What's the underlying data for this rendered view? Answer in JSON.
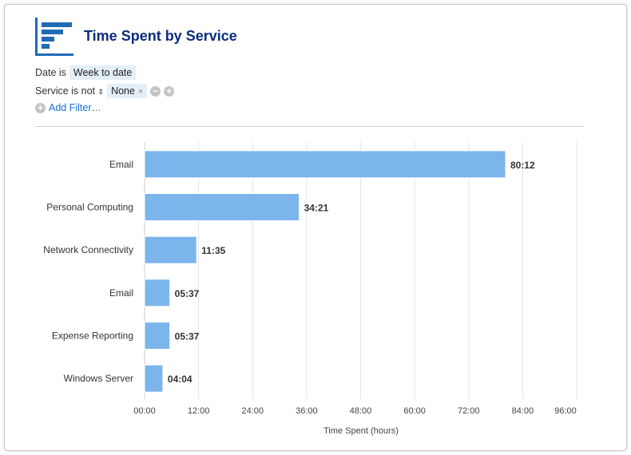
{
  "header": {
    "title": "Time Spent by Service",
    "icon": "bar-chart-icon"
  },
  "filters": {
    "date_label": "Date is",
    "date_value": "Week to date",
    "service_label": "Service is not",
    "service_value": "None",
    "add_filter": "Add Filter…"
  },
  "chart_data": {
    "type": "bar",
    "orientation": "horizontal",
    "categories": [
      "Email",
      "Personal Computing",
      "Network Connectivity",
      "Email",
      "Expense Reporting",
      "Windows Server"
    ],
    "values": [
      80.2,
      34.35,
      11.583,
      5.617,
      5.617,
      4.067
    ],
    "data_labels": [
      "80:12",
      "34:21",
      "11:35",
      "05:37",
      "05:37",
      "04:04"
    ],
    "xlabel": "Time Spent (hours)",
    "xlim": [
      0,
      96
    ],
    "ticks": [
      "00:00",
      "12:00",
      "24:00",
      "36:00",
      "48:00",
      "60:00",
      "72:00",
      "84:00",
      "96:00"
    ],
    "tick_values": [
      0,
      12,
      24,
      36,
      48,
      60,
      72,
      84,
      96
    ],
    "grid": true,
    "bar_color": "#7cb4ec"
  }
}
